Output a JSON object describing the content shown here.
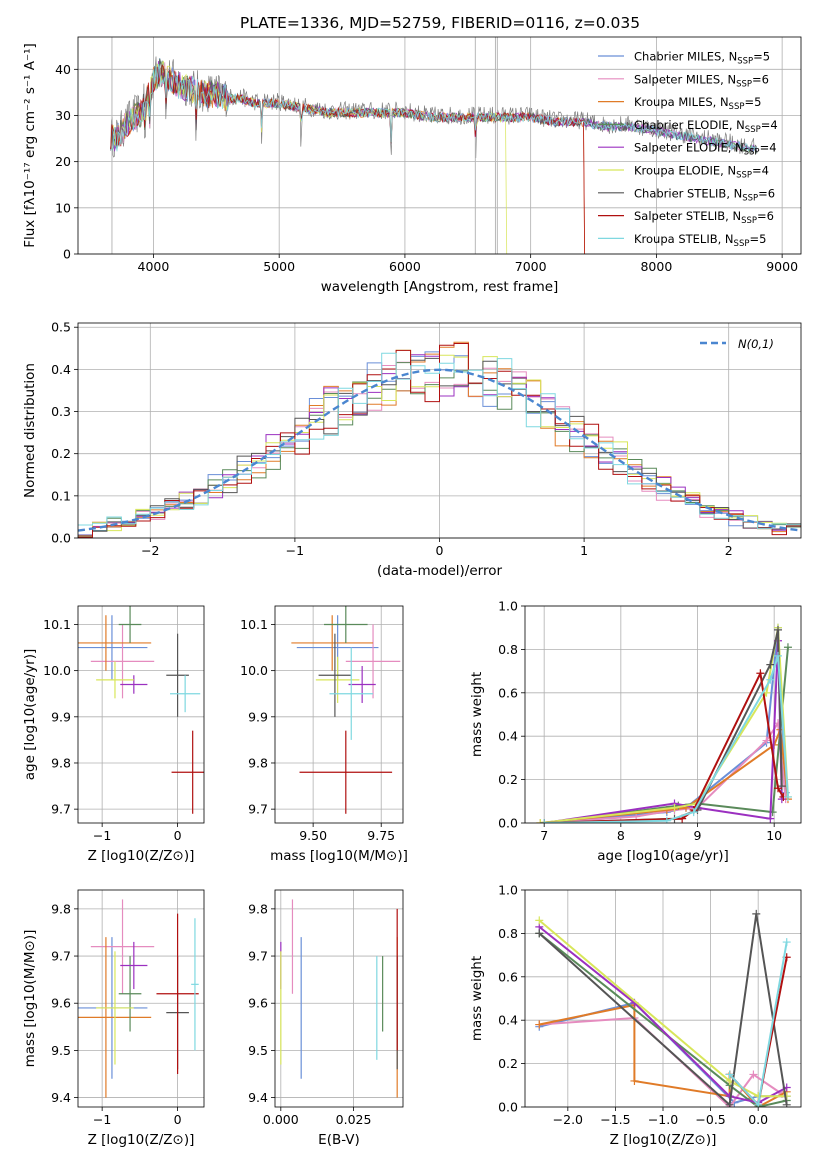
{
  "figure": {
    "title": "PLATE=1336, MJD=52759, FIBERID=0116, z=0.035"
  },
  "models": [
    {
      "name": "Chabrier MILES",
      "nssp": "5",
      "color": "#6a8fd8"
    },
    {
      "name": "Salpeter MILES",
      "nssp": "6",
      "color": "#e58cbf"
    },
    {
      "name": "Kroupa MILES",
      "nssp": "5",
      "color": "#e07b28"
    },
    {
      "name": "Chabrier ELODIE",
      "nssp": "4",
      "color": "#5a8a5a"
    },
    {
      "name": "Salpeter ELODIE",
      "nssp": "4",
      "color": "#9b30c0"
    },
    {
      "name": "Kroupa ELODIE",
      "nssp": "4",
      "color": "#d8e65a"
    },
    {
      "name": "Chabrier STELIB",
      "nssp": "6",
      "color": "#555555"
    },
    {
      "name": "Salpeter STELIB",
      "nssp": "6",
      "color": "#b01010"
    },
    {
      "name": "Kroupa STELIB",
      "nssp": "5",
      "color": "#7fd8e0"
    }
  ],
  "legend_nssp_prefix": "N",
  "legend_nssp_sub": "SSP",
  "chart_data": [
    {
      "id": "spectrum",
      "type": "line",
      "xlabel": "wavelength [Angstrom, rest frame]",
      "ylabel": "Flux [fλ10⁻¹⁷ erg cm⁻² s⁻¹ A⁻¹]",
      "xlim": [
        3400,
        9150
      ],
      "ylim": [
        0,
        47
      ],
      "xticks": [
        4000,
        5000,
        6000,
        7000,
        8000,
        9000
      ],
      "yticks": [
        0,
        10,
        20,
        30,
        40
      ],
      "data_x": [
        3660,
        3700,
        3750,
        3800,
        3850,
        3900,
        3950,
        4000,
        4050,
        4100,
        4200,
        4300,
        4400,
        4500,
        4600,
        4700,
        4800,
        4900,
        5000,
        5200,
        5400,
        5600,
        5800,
        6000,
        6200,
        6400,
        6600,
        6800,
        7000,
        7200,
        7400,
        7600,
        7800,
        8000,
        8200,
        8400,
        8600,
        8800
      ],
      "data_y": [
        26,
        25,
        27,
        29,
        30,
        31,
        34,
        38,
        40,
        39,
        37,
        36,
        35,
        35,
        34,
        34,
        33,
        33,
        33,
        32,
        31,
        31,
        31,
        31,
        30,
        30,
        30,
        30,
        30,
        29,
        29,
        28,
        28,
        27,
        26,
        25,
        24,
        23
      ],
      "model_cut_x": [
        null,
        null,
        7420,
        null,
        null,
        6800,
        null,
        7420,
        null
      ],
      "legend_position": "upper right"
    },
    {
      "id": "residuals",
      "type": "line",
      "xlabel": "(data-model)/error",
      "ylabel": "Normed distribution",
      "xlim": [
        -2.5,
        2.5
      ],
      "ylim": [
        0,
        0.51
      ],
      "xticks": [
        -2,
        -1,
        0,
        1,
        2
      ],
      "yticks": [
        0.0,
        0.1,
        0.2,
        0.3,
        0.4,
        0.5
      ],
      "curve_label": "N(0,1)",
      "curve_color": "#4a86d0",
      "legend_position": "upper right"
    },
    {
      "id": "age_vs_Z",
      "type": "scatter",
      "xlabel": "Z [log10(Z/Z⊙)]",
      "ylabel": "age  [log10(age/yr)]",
      "xlim": [
        -1.32,
        0.35
      ],
      "ylim": [
        9.67,
        10.14
      ],
      "xticks": [
        -1,
        0
      ],
      "yticks": [
        9.7,
        9.8,
        9.9,
        10.0,
        10.1
      ],
      "points": [
        {
          "x": -0.87,
          "y": 10.05,
          "xerr": 0.47,
          "yerr": 0.07
        },
        {
          "x": -0.73,
          "y": 10.02,
          "xerr": 0.42,
          "yerr": 0.08
        },
        {
          "x": -0.95,
          "y": 10.06,
          "xerr": 0.6,
          "yerr": 0.06
        },
        {
          "x": -0.63,
          "y": 10.1,
          "xerr": 0.15,
          "yerr": 0.04
        },
        {
          "x": -0.58,
          "y": 9.97,
          "xerr": 0.18,
          "yerr": 0.02
        },
        {
          "x": -0.83,
          "y": 9.98,
          "xerr": 0.25,
          "yerr": 0.04
        },
        {
          "x": 0.0,
          "y": 9.99,
          "xerr": 0.15,
          "yerr": 0.09
        },
        {
          "x": 0.2,
          "y": 9.78,
          "xerr": 0.28,
          "yerr": 0.09
        },
        {
          "x": 0.1,
          "y": 9.95,
          "xerr": 0.2,
          "yerr": 0.04
        }
      ]
    },
    {
      "id": "age_vs_mass",
      "type": "scatter",
      "xlabel": "mass [log10(M/M⊙)]",
      "ylabel": "",
      "xlim": [
        9.36,
        9.83
      ],
      "ylim": [
        9.67,
        10.14
      ],
      "xticks": [
        9.5,
        9.75
      ],
      "yticks": [
        9.7,
        9.8,
        9.9,
        10.0,
        10.1
      ],
      "points": [
        {
          "x": 9.59,
          "y": 10.05,
          "xerr": 0.15,
          "yerr": 0.07
        },
        {
          "x": 9.72,
          "y": 10.02,
          "xerr": 0.1,
          "yerr": 0.08
        },
        {
          "x": 9.57,
          "y": 10.06,
          "xerr": 0.15,
          "yerr": 0.06
        },
        {
          "x": 9.62,
          "y": 10.1,
          "xerr": 0.08,
          "yerr": 0.04
        },
        {
          "x": 9.68,
          "y": 9.97,
          "xerr": 0.05,
          "yerr": 0.04
        },
        {
          "x": 9.59,
          "y": 9.98,
          "xerr": 0.08,
          "yerr": 0.05
        },
        {
          "x": 9.58,
          "y": 9.99,
          "xerr": 0.06,
          "yerr": 0.09
        },
        {
          "x": 9.62,
          "y": 9.78,
          "xerr": 0.17,
          "yerr": 0.09
        },
        {
          "x": 9.64,
          "y": 9.95,
          "xerr": 0.08,
          "yerr": 0.1
        }
      ]
    },
    {
      "id": "massweight_vs_age",
      "type": "line",
      "xlabel": "age  [log10(age/yr)]",
      "ylabel": "mass weight",
      "xlim": [
        6.75,
        10.35
      ],
      "ylim": [
        0,
        1.0
      ],
      "xticks": [
        7,
        8,
        9,
        10
      ],
      "yticks": [
        0.0,
        0.2,
        0.4,
        0.6,
        0.8,
        1.0
      ],
      "series": [
        {
          "x": [
            7.0,
            8.6,
            8.85,
            9.9,
            10.05,
            10.15
          ],
          "y": [
            0.0,
            0.05,
            0.07,
            0.37,
            0.9,
            0.14
          ]
        },
        {
          "x": [
            7.0,
            8.2,
            8.7,
            9.0,
            9.9,
            10.05,
            10.15
          ],
          "y": [
            0.0,
            0.03,
            0.06,
            0.07,
            0.38,
            0.46,
            0.11
          ]
        },
        {
          "x": [
            6.95,
            8.6,
            8.85,
            10.0,
            10.08,
            10.18
          ],
          "y": [
            0.0,
            0.06,
            0.07,
            0.36,
            0.43,
            0.11
          ]
        },
        {
          "x": [
            7.0,
            8.75,
            9.0,
            9.98,
            10.18
          ],
          "y": [
            0.0,
            0.08,
            0.09,
            0.05,
            0.81
          ]
        },
        {
          "x": [
            7.0,
            8.7,
            9.0,
            9.95,
            10.05,
            10.1
          ],
          "y": [
            0.0,
            0.09,
            0.07,
            0.02,
            0.84,
            0.11
          ]
        },
        {
          "x": [
            6.95,
            8.7,
            9.0,
            9.9,
            10.05,
            10.18
          ],
          "y": [
            0.0,
            0.07,
            0.09,
            0.6,
            0.9,
            0.12
          ]
        },
        {
          "x": [
            7.0,
            8.7,
            9.0,
            9.95,
            10.05,
            10.1
          ],
          "y": [
            0.0,
            0.02,
            0.06,
            0.73,
            0.89,
            0.17
          ]
        },
        {
          "x": [
            7.0,
            8.8,
            8.95,
            9.82,
            10.05,
            10.12
          ],
          "y": [
            0.0,
            0.02,
            0.06,
            0.69,
            0.16,
            0.12
          ]
        },
        {
          "x": [
            7.0,
            8.6,
            8.95,
            9.95,
            10.05,
            10.18
          ],
          "y": [
            0.0,
            0.01,
            0.05,
            0.66,
            0.77,
            0.12
          ]
        }
      ]
    },
    {
      "id": "mass_vs_Z",
      "type": "scatter",
      "xlabel": "Z [log10(Z/Z⊙)]",
      "ylabel": "mass [log10(M/M⊙)]",
      "xlim": [
        -1.32,
        0.35
      ],
      "ylim": [
        9.38,
        9.84
      ],
      "xticks": [
        -1,
        0
      ],
      "yticks": [
        9.4,
        9.5,
        9.6,
        9.7,
        9.8
      ],
      "points": [
        {
          "x": -0.87,
          "y": 9.59,
          "xerr": 0.47,
          "yerr": 0.15
        },
        {
          "x": -0.73,
          "y": 9.72,
          "xerr": 0.42,
          "yerr": 0.1
        },
        {
          "x": -0.95,
          "y": 9.57,
          "xerr": 0.6,
          "yerr": 0.17
        },
        {
          "x": -0.63,
          "y": 9.62,
          "xerr": 0.15,
          "yerr": 0.08
        },
        {
          "x": -0.58,
          "y": 9.68,
          "xerr": 0.18,
          "yerr": 0.05
        },
        {
          "x": -0.83,
          "y": 9.59,
          "xerr": 0.25,
          "yerr": 0.12
        },
        {
          "x": 0.0,
          "y": 9.58,
          "xerr": 0.15,
          "yerr": 0.12
        },
        {
          "x": 0.0,
          "y": 9.62,
          "xerr": 0.28,
          "yerr": 0.17
        },
        {
          "x": 0.23,
          "y": 9.64,
          "xerr": 0.05,
          "yerr": 0.14
        }
      ]
    },
    {
      "id": "mass_vs_ebv",
      "type": "scatter",
      "xlabel": "E(B-V)",
      "ylabel": "",
      "xlim": [
        -0.002,
        0.042
      ],
      "ylim": [
        9.38,
        9.84
      ],
      "xticks": [
        0.0,
        0.025
      ],
      "xtick_labels": [
        "0.000",
        "0.025"
      ],
      "yticks": [
        9.4,
        9.5,
        9.6,
        9.7,
        9.8
      ],
      "points": [
        {
          "x": 0.007,
          "y": 9.59,
          "xerr": 0.0,
          "yerr": 0.15
        },
        {
          "x": 0.004,
          "y": 9.72,
          "xerr": 0.0,
          "yerr": 0.1
        },
        {
          "x": 0.04,
          "y": 9.57,
          "xerr": 0.0,
          "yerr": 0.17
        },
        {
          "x": 0.035,
          "y": 9.62,
          "xerr": 0.0,
          "yerr": 0.08
        },
        {
          "x": 0.0,
          "y": 9.68,
          "xerr": 0.0,
          "yerr": 0.05
        },
        {
          "x": 0.0,
          "y": 9.59,
          "xerr": 0.0,
          "yerr": 0.12
        },
        {
          "x": 0.04,
          "y": 9.58,
          "xerr": 0.0,
          "yerr": 0.12
        },
        {
          "x": 0.04,
          "y": 9.65,
          "xerr": 0.0,
          "yerr": 0.15
        },
        {
          "x": 0.033,
          "y": 9.59,
          "xerr": 0.0,
          "yerr": 0.11
        }
      ]
    },
    {
      "id": "massweight_vs_Z",
      "type": "line",
      "xlabel": "Z [log10(Z/Z⊙)]",
      "ylabel": "mass weight",
      "xlim": [
        -2.45,
        0.45
      ],
      "ylim": [
        0,
        1.0
      ],
      "xticks": [
        -2.0,
        -1.5,
        -1.0,
        -0.5,
        0.0
      ],
      "yticks": [
        0.0,
        0.2,
        0.4,
        0.6,
        0.8,
        1.0
      ],
      "series": [
        {
          "x": [
            -2.3,
            -1.3,
            -0.25,
            0.0,
            0.3
          ],
          "y": [
            0.37,
            0.48,
            0.02,
            0.05,
            0.05
          ]
        },
        {
          "x": [
            -2.3,
            -1.3,
            -0.3,
            -0.05,
            0.25
          ],
          "y": [
            0.38,
            0.41,
            0.0,
            0.15,
            0.06
          ]
        },
        {
          "x": [
            -2.3,
            -1.3,
            -1.3,
            -0.3,
            -0.3,
            0.0,
            0.3
          ],
          "y": [
            0.38,
            0.47,
            0.12,
            0.05,
            0.15,
            0.0,
            0.07
          ]
        },
        {
          "x": [
            -2.3,
            -0.3,
            0.0,
            0.3
          ],
          "y": [
            0.8,
            0.1,
            0.0,
            0.03
          ]
        },
        {
          "x": [
            -2.3,
            -1.3,
            -0.3,
            0.0,
            0.3
          ],
          "y": [
            0.83,
            0.48,
            0.05,
            0.02,
            0.09
          ]
        },
        {
          "x": [
            -2.3,
            -0.3,
            0.0,
            0.3
          ],
          "y": [
            0.86,
            0.12,
            0.05,
            0.05
          ]
        },
        {
          "x": [
            -2.3,
            -0.3,
            -0.02,
            0.3
          ],
          "y": [
            0.8,
            0.01,
            0.89,
            0.01
          ]
        },
        {
          "x": [
            -0.3,
            0.0,
            0.3
          ],
          "y": [
            0.15,
            0.01,
            0.69
          ]
        },
        {
          "x": [
            -0.3,
            0.0,
            0.3
          ],
          "y": [
            0.15,
            0.01,
            0.76
          ]
        }
      ]
    }
  ]
}
